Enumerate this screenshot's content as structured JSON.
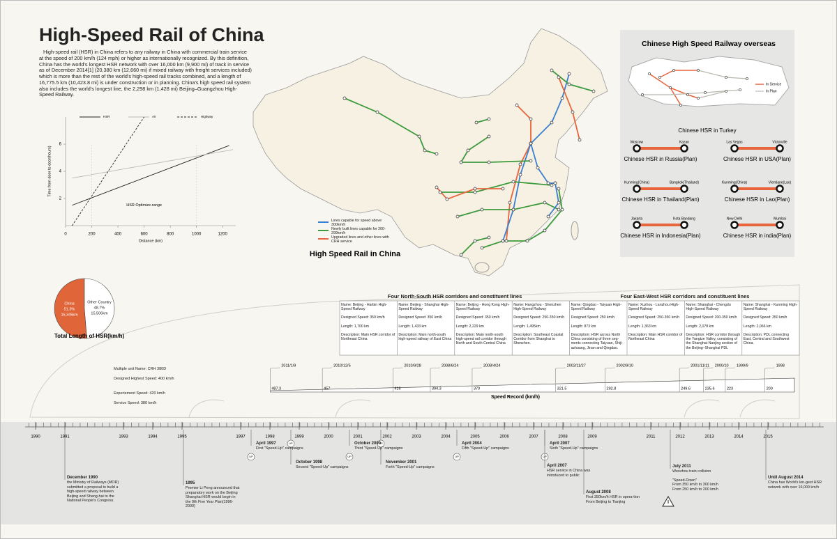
{
  "header": {
    "title": "High-Speed Rail of China",
    "intro": "High-speed rail (HSR) in China refers to any railway in China with commercial train service at the speed of 200 km/h (124 mph) or higher as internationally recognized. By this definition, China has the world's longest HSR network with over 16,000 km (9,900 mi) of track in service as of December 2014[1] (20,380 km (12,660 mi) if mixed railway with freight services included) which is more than the rest of the world's high-speed rail tracks combined, and a length of 16,775.5 km (10,423.8 mi) is under construction or in planning. China's high speed rail system also includes the world's longest line, the 2,298 km (1,428 mi) Beijing–Guangzhou High-Speed Railway."
  },
  "chart_data": [
    {
      "type": "line",
      "xlabel": "Distance (km)",
      "ylabel": "Time from door to door(hours)",
      "annotation": "HSR Optimize-range",
      "annotation_range": [
        200,
        1000
      ],
      "series": [
        {
          "name": "HSR",
          "color": "#222222",
          "x": [
            50,
            1250
          ],
          "values": [
            1.5,
            5.9
          ]
        },
        {
          "name": "Air",
          "color": "#bbbbbb",
          "x": [
            50,
            1280
          ],
          "values": [
            3.5,
            5.6
          ]
        },
        {
          "name": "Highway",
          "color": "#222222",
          "dashed": true,
          "x": [
            50,
            600
          ],
          "values": [
            0,
            8
          ]
        }
      ],
      "xlim": [
        0,
        1300
      ],
      "ylim": [
        0,
        8
      ],
      "xticks": [
        0,
        200,
        400,
        600,
        800,
        1000,
        1200
      ],
      "yticks": [
        2,
        4,
        6
      ]
    },
    {
      "type": "pie",
      "title": "Total Length of HSR(km/h)",
      "categories": [
        "China",
        "Other Country"
      ],
      "values": [
        51.3,
        48.7
      ],
      "value_labels": [
        "51.3%",
        "48.7%"
      ],
      "lengths": [
        "16,345km",
        "15,506km"
      ],
      "colors": [
        "#e0663a",
        "#ffffff"
      ]
    },
    {
      "type": "bar",
      "orientation": "horizontal",
      "title": "Speed Record (km/h)",
      "categories": [
        "2011/1/9",
        "2010/12/5",
        "2010/9/28",
        "2008/6/24",
        "2008/4/24",
        "2002/11/27",
        "2002/9/10",
        "2001/11/11",
        "2000/10",
        "1999/9",
        "1998"
      ],
      "values": [
        487.3,
        457,
        416,
        394.3,
        370,
        321.5,
        292.8,
        249.6,
        235.6,
        223,
        200
      ],
      "xlim": [
        500,
        180
      ],
      "color": "#ffffff"
    }
  ],
  "map": {
    "title": "High Speed Rail in China",
    "legend": [
      {
        "label": "Lines capable for speed above 300km/h",
        "color": "#3a7fd0"
      },
      {
        "label": "Newly built lines capable for 200-299km/h",
        "color": "#3d9a3d"
      },
      {
        "label": "Upgraded lines and other lines with CRH service",
        "color": "#e8643a"
      }
    ]
  },
  "overseas": {
    "title": "Chinese High Speed Railway overseas",
    "turkey_caption": "Chinese HSR in Turkey",
    "legend": [
      {
        "label": "In Service",
        "color": "#e8643a"
      },
      {
        "label": "In Plan",
        "color": "#c9c9c0"
      }
    ],
    "routes": [
      {
        "from": "Moscow",
        "to": "Kazan",
        "caption": "Chinese HSR in Russia(Plan)"
      },
      {
        "from": "Las Vegas",
        "to": "Victorville",
        "caption": "Chinese HSR in USA(Plan)"
      },
      {
        "from": "Kunming(China)",
        "to": "Bangkok(Thailand)",
        "caption": "Chinese HSR in Thailand(Plan)"
      },
      {
        "from": "Kunming(China)",
        "to": "Vientiane(Lao)",
        "caption": "Chinese HSR in Lao(Plan)"
      },
      {
        "from": "Jakarta",
        "to": "Kota Bandang",
        "caption": "Chinese HSR in Indonesia(Plan)"
      },
      {
        "from": "New Delhi",
        "to": "Mumbai",
        "caption": "Chinese HSR in india(Plan)"
      }
    ]
  },
  "corridors": {
    "north_south_title": "Four North-South HSR corridors and constituent lines",
    "east_west_title": "Four East-West HSR corridors and constituent lines",
    "columns": [
      {
        "name": "Name: Beijing - Harbin High-Speed Railway",
        "speed": "Designed Speed: 350 km/h",
        "length": "Length: 1,700 km",
        "description": "Description: Main HSR corridor of Northeast China"
      },
      {
        "name": "Name: Beijing - Shanghai High-Speed Railway",
        "speed": "Designed Speed: 350 km/h",
        "length": "Length: 1,433 km",
        "description": "Description: Main north-south high-speed railway of East China"
      },
      {
        "name": "Name: Beijing - Hong Kong High-Speed Railway",
        "speed": "Designed Speed: 350 km/h",
        "length": "Length: 2,229 km",
        "description": "Description: Main north-south high-speed rail corridor through North and South Central China"
      },
      {
        "name": "Name: Hangzhou - Shenzhen High-Speed Railway",
        "speed": "Designed Speed: 250-350 km/h",
        "length": "Length: 1,495km",
        "description": "Description: Southeast Coastal Corridor from Shanghai to Shenzhen."
      },
      {
        "name": "Name: Qingdao - Taiyuan High-Speed Railway",
        "speed": "Designed Speed: 250 km/h",
        "length": "Length: 873 km",
        "description": "Description: HSR across North China consisting of three seg-ments connecting Taiyuan, Shiji-azhuang, Jinan and Qingdao."
      },
      {
        "name": "Name: Xuzhou - Lanzhou High-Speed Railway",
        "speed": "Designed Speed: 250-350 km/h",
        "length": "Length: 1,363 km",
        "description": "Description: Main HSR corridor of Northeast China"
      },
      {
        "name": "Name: Shanghai - Chengdu High-Speed Railway",
        "speed": "Designed Speed: 200-350 km/h",
        "length": "Length: 2,078 km",
        "description": "Description: HSR corridor through the Yangtze Valley, consisting of the Shanghai-Nanjing section of the Beijing–Shanghai PDL"
      },
      {
        "name": "Name: Shanghai - Kunming High-Speed Railway",
        "speed": "Designed Speed: 350 km/h",
        "length": "Length: 2,066 km",
        "description": "Description: PDL connecting East, Central and Southwest China."
      }
    ]
  },
  "train": {
    "lines": [
      "Multiple unit Name: CRH 380D",
      "Designed Highest Speed: 400 km/h",
      "Experiement Speed: 420 km/h",
      "Service Speed: 380 km/h"
    ]
  },
  "timeline": {
    "xlim": [
      1990,
      2015
    ],
    "xticks": [
      1990,
      1991,
      1993,
      1994,
      1995,
      1997,
      1998,
      1999,
      2000,
      2001,
      2002,
      2003,
      2004,
      2005,
      2006,
      2007,
      2008,
      2009,
      2011,
      2012,
      2013,
      2014,
      2015
    ],
    "up_label": "UP",
    "events": [
      {
        "date": "December 1990",
        "text": "the Ministry of Railways (MOR) submitted a proposal to build a high-speed railway between Beijing and Shang-hai to the National People's Congress."
      },
      {
        "date": "1995",
        "text": "Premier Li Peng announced that preparatory work on the Beijing Shanghai HSR would begin in the 9th Five Year Plan(1996-2000)"
      },
      {
        "date": "April 1997",
        "text": "First \"Speed-Up\" campaigns",
        "speed_up": true
      },
      {
        "date": "October 1998",
        "text": "Second \"Speed-Up\" campaigns",
        "speed_up": true
      },
      {
        "date": "October 2000",
        "text": "Third \"Speed-Up\" campaigns",
        "speed_up": true
      },
      {
        "date": "November 2001",
        "text": "Forth \"Speed-Up\" campaigns",
        "speed_up": true
      },
      {
        "date": "April 2004",
        "text": "Fifth \"Speed-Up\" campaigns",
        "speed_up": true
      },
      {
        "date": "April 2007",
        "text": "Sixth \"Speed-Up\" campaigns",
        "speed_up": true
      },
      {
        "date": "April 2007",
        "text": "HSR service in China was introduced to public"
      },
      {
        "date": "August 2008",
        "text": "First 350km/h HSR in opera-tion From Beijing to Tianjing"
      },
      {
        "date": "July 2011",
        "text": "Wenzhou train collision",
        "extra": [
          "\"Speed-Down\"",
          "From 350 km/h to 300 km/h",
          "From 250 km/h to 200 km/h"
        ]
      },
      {
        "date": "Until August 2014",
        "text": "China has World's lon-gest HSR network with over 16,000 km/h"
      }
    ]
  }
}
